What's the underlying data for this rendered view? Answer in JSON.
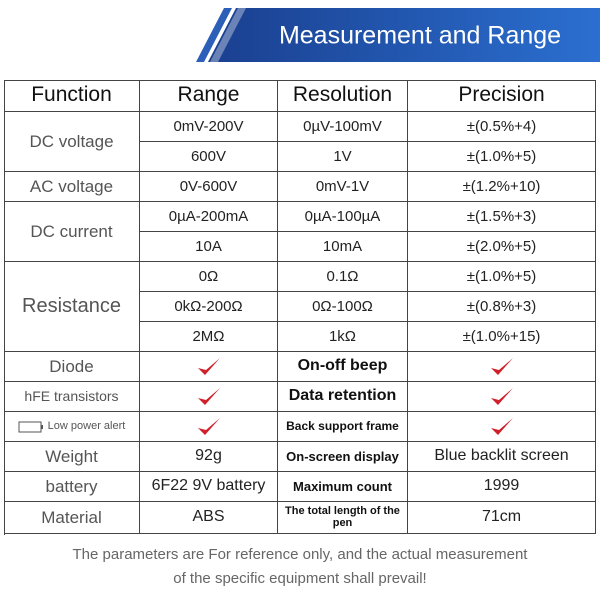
{
  "header": {
    "title": "Measurement and Range"
  },
  "table": {
    "columns": [
      "Function",
      "Range",
      "Resolution",
      "Precision"
    ],
    "measurements": [
      {
        "function": "DC voltage",
        "ranges": [
          [
            "0mV-200V",
            "0µV-100mV",
            "±(0.5%+4)"
          ],
          [
            "600V",
            "1V",
            "±(1.0%+5)"
          ]
        ]
      },
      {
        "function": "AC voltage",
        "ranges": [
          [
            "0V-600V",
            "0mV-1V",
            "±(1.2%+10)"
          ]
        ]
      },
      {
        "function": "DC current",
        "ranges": [
          [
            "0µA-200mA",
            "0µA-100µA",
            "±(1.5%+3)"
          ],
          [
            "10A",
            "10mA",
            "±(2.0%+5)"
          ]
        ]
      },
      {
        "function": "Resistance",
        "ranges": [
          [
            "0Ω",
            "0.1Ω",
            "±(1.0%+5)"
          ],
          [
            "0kΩ-200Ω",
            "0Ω-100Ω",
            "±(0.8%+3)"
          ],
          [
            "2MΩ",
            "1kΩ",
            "±(1.0%+15)"
          ]
        ]
      }
    ],
    "features": [
      {
        "function": "Diode",
        "feature": "On-off beep"
      },
      {
        "function": "hFE transistors",
        "feature": "Data retention"
      },
      {
        "function": "Low power alert",
        "feature": "Back support frame"
      }
    ],
    "specs": [
      {
        "label": "Weight",
        "value": "92g",
        "label2": "On-screen display",
        "value2": "Blue backlit screen"
      },
      {
        "label": "battery",
        "value": "6F22 9V battery",
        "label2": "Maximum count",
        "value2": "1999"
      },
      {
        "label": "Material",
        "value": "ABS",
        "label2": "The total length of the pen",
        "value2": "71cm"
      }
    ]
  },
  "note": [
    "The parameters are For reference only, and the actual measurement",
    "of the specific equipment shall prevail!"
  ]
}
